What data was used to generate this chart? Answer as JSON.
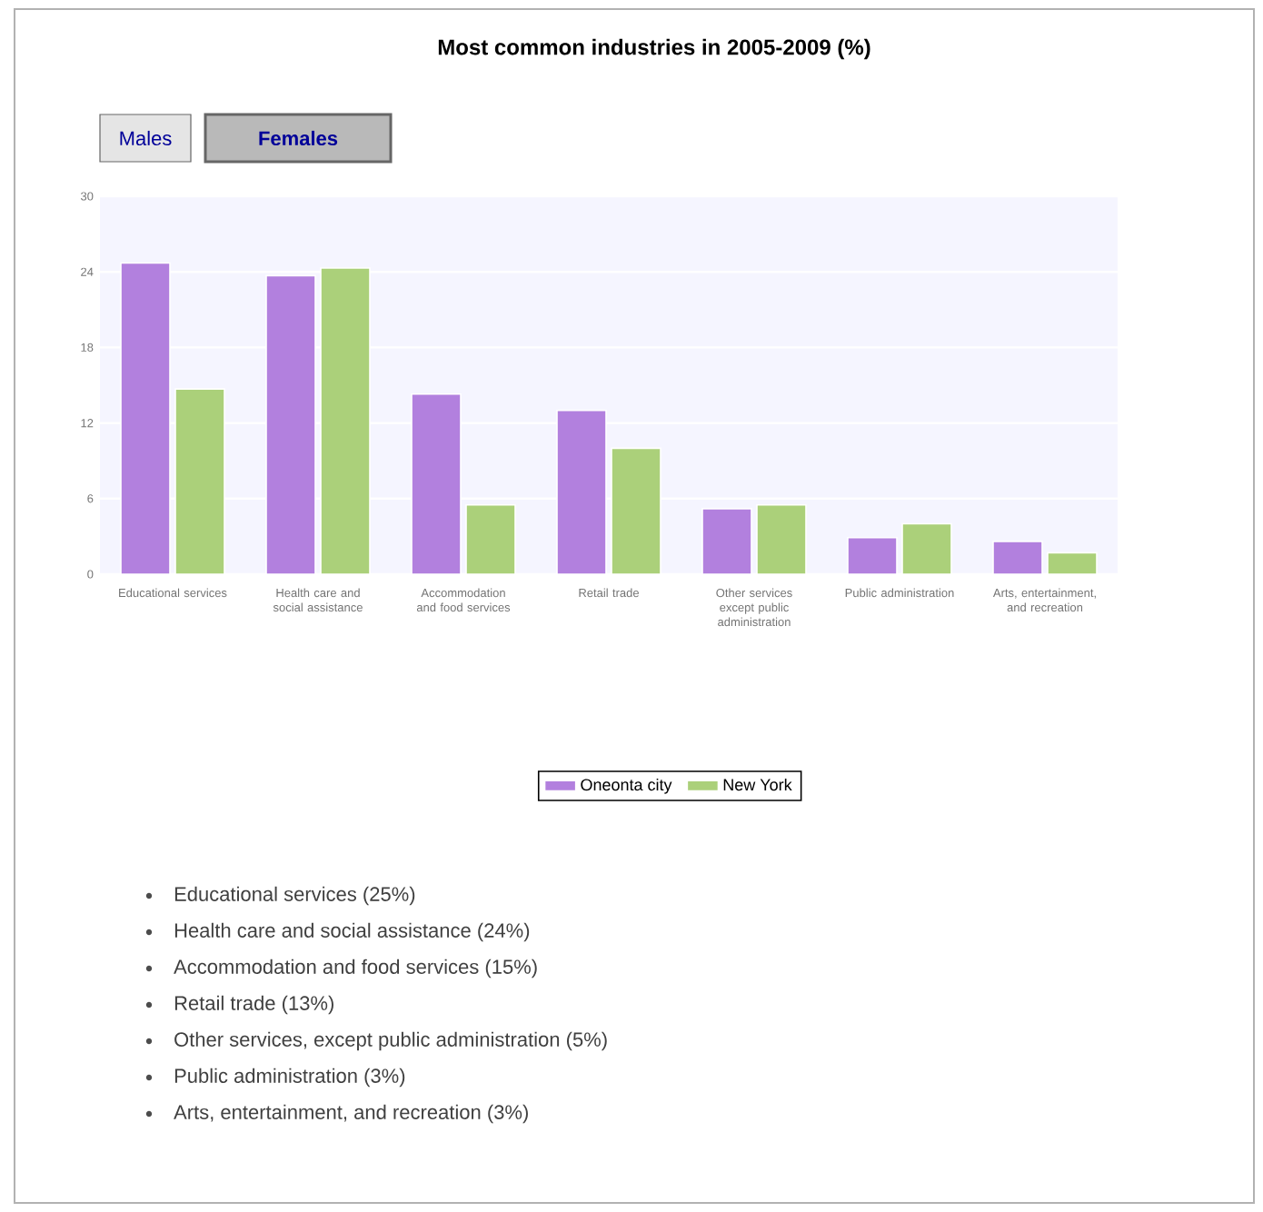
{
  "chart_data": {
    "type": "bar",
    "title": "Most common industries in 2005-2009 (%)",
    "categories": [
      "Educational services",
      "Health care and social assistance",
      "Accommodation and food services",
      "Retail trade",
      "Other services except public administration",
      "Public administration",
      "Arts, entertainment, and recreation"
    ],
    "series": [
      {
        "name": "Oneonta city",
        "color": "#b280de",
        "values": [
          24.7,
          23.7,
          14.3,
          13.0,
          5.2,
          2.9,
          2.6
        ]
      },
      {
        "name": "New York",
        "color": "#abd07a",
        "values": [
          14.7,
          24.3,
          5.5,
          10.0,
          5.5,
          4.0,
          1.7
        ]
      }
    ],
    "ylim": [
      0,
      30
    ],
    "yticks": [
      0,
      6,
      12,
      18,
      24,
      30
    ],
    "grid": "y",
    "legend": "bottom",
    "annotations": [
      "Males",
      "Females",
      "Educational services (25%)",
      "Health care and social assistance (24%)",
      "Accommodation and food services (15%)",
      "Retail trade (13%)",
      "Other services, except public administration (5%)",
      "Public administration (3%)",
      "Arts, entertainment, and recreation (3%)"
    ]
  }
}
